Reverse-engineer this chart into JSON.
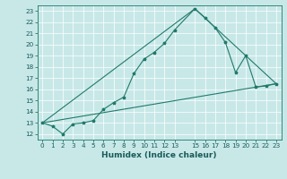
{
  "xlabel": "Humidex (Indice chaleur)",
  "ylabel": "",
  "bg_color": "#c8e8e8",
  "line_color": "#217a6a",
  "xlim": [
    -0.5,
    23.5
  ],
  "ylim": [
    11.5,
    23.5
  ],
  "xticks": [
    0,
    1,
    2,
    3,
    4,
    5,
    6,
    7,
    8,
    9,
    10,
    11,
    12,
    13,
    15,
    16,
    17,
    18,
    19,
    20,
    21,
    22,
    23
  ],
  "yticks": [
    12,
    13,
    14,
    15,
    16,
    17,
    18,
    19,
    20,
    21,
    22,
    23
  ],
  "line1_x": [
    0,
    1,
    2,
    3,
    4,
    5,
    6,
    7,
    8,
    9,
    10,
    11,
    12,
    13,
    15,
    16,
    17,
    18,
    19,
    20,
    21,
    22,
    23
  ],
  "line1_y": [
    13,
    12.7,
    12,
    12.9,
    13,
    13.2,
    14.2,
    14.8,
    15.3,
    17.4,
    18.7,
    19.3,
    20.1,
    21.3,
    23.2,
    22.4,
    21.5,
    20.2,
    17.5,
    19.0,
    16.2,
    16.3,
    16.5
  ],
  "line3_x": [
    0,
    15,
    23
  ],
  "line3_y": [
    13,
    23.2,
    16.5
  ],
  "line4_x": [
    0,
    23
  ],
  "line4_y": [
    13,
    16.5
  ]
}
